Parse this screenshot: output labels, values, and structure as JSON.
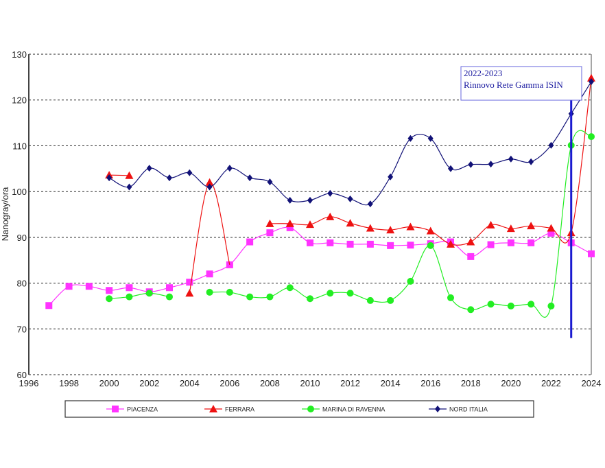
{
  "chart_data": {
    "type": "line",
    "title": "",
    "xlabel": "",
    "ylabel": "Nanogray/ora",
    "xlim": [
      1996,
      2024
    ],
    "ylim": [
      60,
      130
    ],
    "xticks": [
      1996,
      1998,
      2000,
      2002,
      2004,
      2006,
      2008,
      2010,
      2012,
      2014,
      2016,
      2018,
      2020,
      2022,
      2024
    ],
    "yticks": [
      60,
      70,
      80,
      90,
      100,
      110,
      120,
      130
    ],
    "grid": "horizontal dotted",
    "legend_position": "bottom",
    "smoothed": true,
    "annotation": {
      "lines": [
        "2022-2023",
        "Rinnovo Rete Gamma ISIN"
      ],
      "x": 2023,
      "color": "#1a1ad0",
      "marker_line_from": 68,
      "marker_line_to": 120
    },
    "series": [
      {
        "name": "PIACENZA",
        "color": "#ff33ff",
        "marker": "square",
        "x": [
          1997,
          1998,
          1999,
          2000,
          2001,
          2002,
          2003,
          2004,
          2005,
          2006,
          2007,
          2008,
          2009,
          2010,
          2011,
          2012,
          2013,
          2014,
          2015,
          2016,
          2017,
          2018,
          2019,
          2020,
          2021,
          2022,
          2023,
          2024
        ],
        "y": [
          75.1,
          79.3,
          79.3,
          78.4,
          79.0,
          78.1,
          79.0,
          80.2,
          82.0,
          84.0,
          89.0,
          91.0,
          92.1,
          88.8,
          88.8,
          88.5,
          88.5,
          88.2,
          88.3,
          88.6,
          89.0,
          85.8,
          88.4,
          88.8,
          88.8,
          90.9,
          88.8,
          86.4
        ]
      },
      {
        "name": "FERRARA",
        "color": "#ee1111",
        "marker": "triangle",
        "segments": [
          {
            "x": [
              2000,
              2001
            ],
            "y": [
              103.6,
              103.5
            ]
          },
          {
            "x": [
              2004,
              2005,
              2006
            ],
            "y": [
              77.8,
              102.0,
              84.0
            ],
            "markers": [
              true,
              true,
              false
            ]
          },
          {
            "x": [
              2008,
              2009,
              2010,
              2011,
              2012,
              2013,
              2014,
              2015,
              2016,
              2017,
              2018,
              2019,
              2020,
              2021,
              2022,
              2023,
              2024
            ],
            "y": [
              93.0,
              93.0,
              92.8,
              94.5,
              93.1,
              92.0,
              91.6,
              92.3,
              91.4,
              88.5,
              89.0,
              92.7,
              91.9,
              92.5,
              92.0,
              91.0,
              124.8
            ]
          }
        ]
      },
      {
        "name": "MARINA DI RAVENNA",
        "color": "#22ee22",
        "marker": "circle",
        "segments": [
          {
            "x": [
              2000,
              2001,
              2002,
              2003
            ],
            "y": [
              76.6,
              77.0,
              77.8,
              77.0
            ]
          },
          {
            "x": [
              2005,
              2006,
              2007,
              2008,
              2009,
              2010,
              2011,
              2012,
              2013,
              2014,
              2015,
              2016,
              2017,
              2018,
              2019,
              2020,
              2021,
              2022,
              2023,
              2024
            ],
            "y": [
              78.0,
              78.0,
              77.0,
              77.0,
              79.0,
              76.6,
              77.8,
              77.8,
              76.2,
              76.2,
              80.4,
              88.2,
              76.8,
              74.2,
              75.4,
              75.0,
              75.4,
              75.0,
              110.1,
              112.0
            ]
          }
        ]
      },
      {
        "name": "NORD ITALIA",
        "color": "#111177",
        "marker": "diamond",
        "x": [
          2000,
          2001,
          2002,
          2003,
          2004,
          2005,
          2006,
          2007,
          2008,
          2009,
          2010,
          2011,
          2012,
          2013,
          2014,
          2015,
          2016,
          2017,
          2018,
          2019,
          2020,
          2021,
          2022,
          2023,
          2024
        ],
        "y": [
          103.0,
          101.0,
          105.1,
          103.0,
          104.1,
          101.0,
          105.1,
          103.0,
          102.1,
          98.1,
          98.1,
          99.6,
          98.4,
          97.3,
          103.2,
          111.6,
          111.6,
          105.0,
          105.9,
          106.0,
          107.1,
          106.5,
          110.1,
          117.0,
          124.0
        ]
      }
    ]
  }
}
